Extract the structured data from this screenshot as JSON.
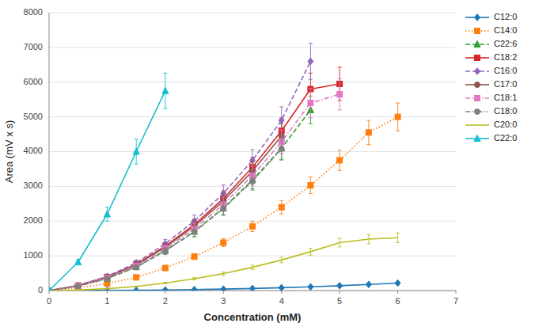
{
  "chart_data": {
    "type": "line",
    "x_label": "Concentration (mM)",
    "y_label": "Area (mV x s)",
    "xlim": [
      0,
      7
    ],
    "ylim": [
      0,
      8000
    ],
    "xticks": [
      0,
      1,
      2,
      3,
      4,
      5,
      6,
      7
    ],
    "yticks": [
      0,
      1000,
      2000,
      3000,
      4000,
      5000,
      6000,
      7000,
      8000
    ],
    "grid": true,
    "legend": "right",
    "series": [
      {
        "name": "C12:0",
        "marker": "diamond",
        "line_style": "solid",
        "x": [
          0,
          0.5,
          1.0,
          1.5,
          2.0,
          2.5,
          3.0,
          3.5,
          4.0,
          4.5,
          5.0,
          5.5,
          6.0
        ],
        "values": [
          0,
          2,
          5,
          10,
          18,
          28,
          42,
          60,
          82,
          108,
          140,
          175,
          215
        ],
        "errors": [
          0,
          1,
          1,
          2,
          3,
          4,
          5,
          6,
          8,
          10,
          13,
          16,
          20
        ]
      },
      {
        "name": "C14:0",
        "marker": "square",
        "line_style": "dotted",
        "x": [
          0,
          0.5,
          1.0,
          1.5,
          2.0,
          2.5,
          3.0,
          3.5,
          4.0,
          4.5,
          5.0,
          5.5,
          6.0
        ],
        "values": [
          0,
          80,
          200,
          380,
          650,
          980,
          1380,
          1850,
          2400,
          3030,
          3750,
          4550,
          5000
        ],
        "errors": [
          0,
          8,
          18,
          35,
          58,
          85,
          115,
          150,
          190,
          240,
          295,
          350,
          400
        ]
      },
      {
        "name": "C22:6",
        "marker": "triangle",
        "line_style": "dashed",
        "x": [
          0,
          0.5,
          1.0,
          1.5,
          2.0,
          2.5,
          3.0,
          3.5,
          4.0,
          4.5
        ],
        "values": [
          0,
          130,
          350,
          680,
          1150,
          1700,
          2380,
          3180,
          4100,
          5200
        ],
        "errors": [
          0,
          12,
          32,
          62,
          100,
          145,
          195,
          255,
          320,
          400
        ]
      },
      {
        "name": "C18:2",
        "marker": "square",
        "line_style": "solid",
        "x": [
          0,
          0.5,
          1.0,
          1.5,
          2.0,
          2.5,
          3.0,
          3.5,
          4.0,
          4.5,
          5.0
        ],
        "values": [
          0,
          145,
          390,
          760,
          1280,
          1900,
          2650,
          3550,
          4600,
          5800,
          5950
        ],
        "errors": [
          0,
          13,
          35,
          68,
          110,
          160,
          220,
          290,
          370,
          460,
          480
        ]
      },
      {
        "name": "C16:0",
        "marker": "diamond",
        "line_style": "dashed",
        "x": [
          0,
          0.5,
          1.0,
          1.5,
          2.0,
          2.5,
          3.0,
          3.5,
          4.0,
          4.5
        ],
        "values": [
          0,
          150,
          410,
          800,
          1350,
          2000,
          2800,
          3750,
          4900,
          6600
        ],
        "errors": [
          0,
          14,
          38,
          73,
          122,
          175,
          240,
          310,
          390,
          520
        ]
      },
      {
        "name": "C17:0",
        "marker": "circle",
        "line_style": "solid",
        "x": [
          0,
          0.5,
          1.0,
          1.5,
          2.0,
          2.5,
          3.0,
          3.5,
          4.0
        ],
        "values": [
          0,
          140,
          380,
          740,
          1250,
          1850,
          2580,
          3440,
          4450
        ],
        "errors": [
          0,
          13,
          35,
          67,
          107,
          155,
          210,
          275,
          350
        ]
      },
      {
        "name": "C18:1",
        "marker": "square",
        "line_style": "dashdot",
        "x": [
          0,
          0.5,
          1.0,
          1.5,
          2.0,
          2.5,
          3.0,
          3.5,
          4.0,
          4.5,
          5.0
        ],
        "values": [
          0,
          135,
          365,
          710,
          1200,
          1780,
          2480,
          3310,
          4280,
          5400,
          5650
        ],
        "errors": [
          0,
          12,
          33,
          64,
          104,
          152,
          210,
          270,
          340,
          425,
          450
        ]
      },
      {
        "name": "C18:0",
        "marker": "circle",
        "line_style": "dashdotdot",
        "x": [
          0,
          0.5,
          1.0,
          1.5,
          2.0,
          2.5,
          3.0,
          3.5,
          4.0
        ],
        "values": [
          0,
          128,
          345,
          675,
          1140,
          1690,
          2360,
          3150,
          4080
        ],
        "errors": [
          0,
          12,
          32,
          61,
          100,
          145,
          198,
          258,
          325
        ]
      },
      {
        "name": "C20:0",
        "marker": "none",
        "line_style": "solid",
        "x": [
          0,
          0.5,
          1.0,
          1.5,
          2.0,
          2.5,
          3.0,
          3.5,
          4.0,
          4.5,
          5.0,
          5.5,
          6.0
        ],
        "values": [
          0,
          18,
          55,
          120,
          215,
          340,
          490,
          670,
          880,
          1120,
          1380,
          1480,
          1520
        ],
        "errors": [
          0,
          2,
          5,
          11,
          20,
          32,
          46,
          62,
          80,
          100,
          125,
          135,
          140
        ]
      },
      {
        "name": "C22:0",
        "marker": "triangle",
        "line_style": "solid",
        "x": [
          0,
          0.5,
          1.0,
          1.5,
          2.0
        ],
        "values": [
          0,
          820,
          2200,
          4000,
          5750
        ],
        "errors": [
          0,
          75,
          200,
          360,
          510
        ]
      }
    ]
  }
}
